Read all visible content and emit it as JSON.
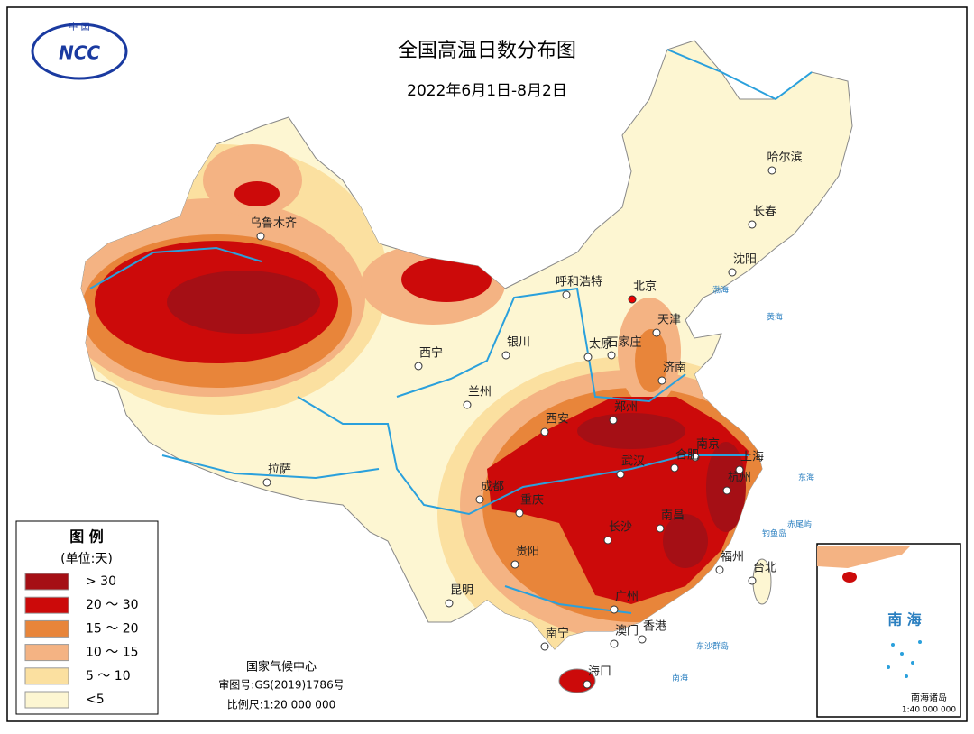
{
  "logo": {
    "country": "中 国",
    "text": "NCC"
  },
  "header": {
    "title": "全国高温日数分布图",
    "subtitle": "2022年6月1日-8月2日"
  },
  "legend": {
    "title": "图 例",
    "unit": "(单位:天)",
    "items": [
      {
        "label": "> 30",
        "color": "#a50f15"
      },
      {
        "label": "20 ～ 30",
        "color": "#cc0a0a"
      },
      {
        "label": "15 ～ 20",
        "color": "#e8853a"
      },
      {
        "label": "10 ～ 15",
        "color": "#f4b383"
      },
      {
        "label": "5 ～ 10",
        "color": "#fbe0a0"
      },
      {
        "label": "<5",
        "color": "#fdf6d2"
      }
    ]
  },
  "cities": [
    "乌鲁木齐",
    "呼和浩特",
    "北京",
    "天津",
    "石家庄",
    "太原",
    "济南",
    "银川",
    "西宁",
    "兰州",
    "西安",
    "郑州",
    "南京",
    "合肥",
    "上海",
    "杭州",
    "武汉",
    "成都",
    "重庆",
    "长沙",
    "南昌",
    "福州",
    "台北",
    "贵阳",
    "昆明",
    "南宁",
    "广州",
    "澳门",
    "香港",
    "海口",
    "拉萨",
    "哈尔滨",
    "长春",
    "沈阳"
  ],
  "seas": [
    "渤海",
    "黄海",
    "东海",
    "南海"
  ],
  "islands": [
    "钓鱼岛",
    "赤尾屿",
    "东沙群岛"
  ],
  "footer": {
    "org": "国家气候中心",
    "approval": "审图号:GS(2019)1786号",
    "scale": "比例尺:1:20 000 000"
  },
  "inset": {
    "sea": "南 海",
    "title": "南海诸岛",
    "scale": "1:40 000 000"
  }
}
